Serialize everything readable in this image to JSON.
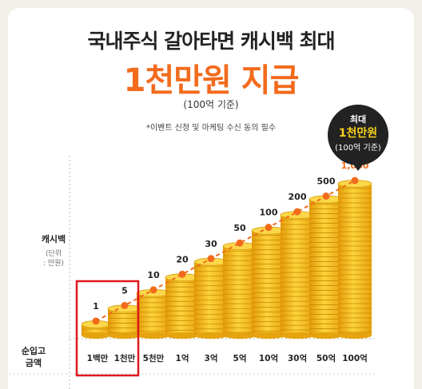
{
  "header": {
    "title_line1": "국내주식 갈아타면 캐시백 최대",
    "title_line2": "1천만원 지급",
    "basis_note": "(100억 기준)",
    "footnote": "*이벤트 신청 및 마케팅 수신 동의 필수"
  },
  "badge": {
    "line1": "최대",
    "line2": "1천만원",
    "line3": "(100억 기준)"
  },
  "colors": {
    "accent": "#f26b1d",
    "coin": "#f3c017",
    "badge_bg": "#222222",
    "badge_text_highlight": "#f7d21a",
    "highlight_box": "#e0191e"
  },
  "chart_data": {
    "type": "bar",
    "ylabel": "캐시백",
    "ylabel_unit": "(단위\n: 만원)",
    "xlabel": "순입고\n금액",
    "categories": [
      "1백만",
      "1천만",
      "5천만",
      "1억",
      "3억",
      "5억",
      "10억",
      "30억",
      "50억",
      "100억"
    ],
    "values": [
      1,
      5,
      10,
      20,
      30,
      50,
      100,
      200,
      500,
      1000
    ],
    "value_labels": [
      "1",
      "5",
      "10",
      "20",
      "30",
      "50",
      "100",
      "200",
      "500",
      "1,000"
    ],
    "highlighted_categories": [
      "1백만",
      "1천만"
    ],
    "trend_line": "dashed",
    "grid": false
  }
}
